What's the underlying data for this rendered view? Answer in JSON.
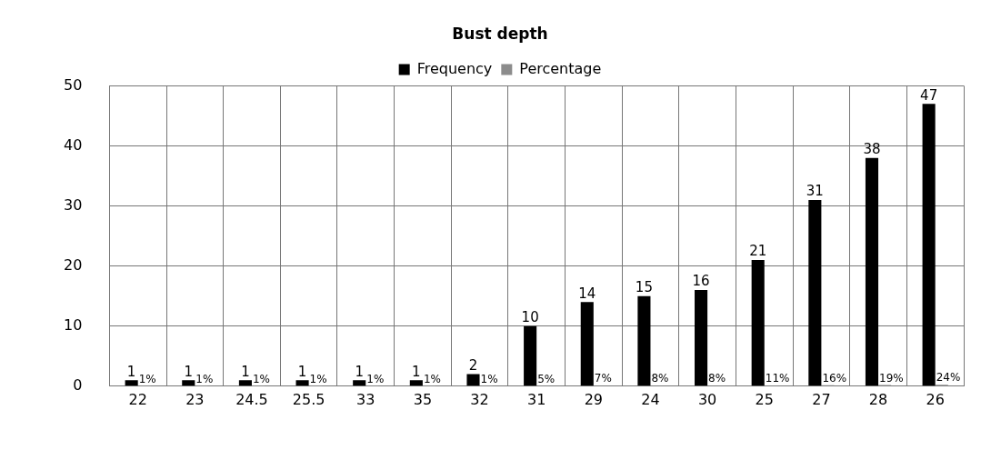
{
  "chart_data": {
    "type": "bar",
    "title": "Bust depth",
    "categories": [
      "22",
      "23",
      "24.5",
      "25.5",
      "33",
      "35",
      "32",
      "31",
      "29",
      "24",
      "30",
      "25",
      "27",
      "28",
      "26"
    ],
    "series": [
      {
        "name": "Frequency",
        "color": "#000000",
        "values": [
          1,
          1,
          1,
          1,
          1,
          1,
          2,
          10,
          14,
          15,
          16,
          21,
          31,
          38,
          47
        ],
        "value_labels": [
          "1",
          "1",
          "1",
          "1",
          "1",
          "1",
          "2",
          "10",
          "14",
          "15",
          "16",
          "21",
          "31",
          "38",
          "47"
        ]
      },
      {
        "name": "Percentage",
        "color": "#8c8c8c",
        "values": [
          0.01,
          0.01,
          0.01,
          0.01,
          0.01,
          0.01,
          0.01,
          0.05,
          0.07,
          0.08,
          0.08,
          0.11,
          0.16,
          0.19,
          0.24
        ],
        "value_labels": [
          "1%",
          "1%",
          "1%",
          "1%",
          "1%",
          "1%",
          "1%",
          "5%",
          "7%",
          "8%",
          "8%",
          "11%",
          "16%",
          "19%",
          "24%"
        ]
      }
    ],
    "ylim": [
      0,
      50
    ],
    "yticks": [
      0,
      10,
      20,
      30,
      40,
      50
    ],
    "grid": true,
    "legend": "top"
  }
}
